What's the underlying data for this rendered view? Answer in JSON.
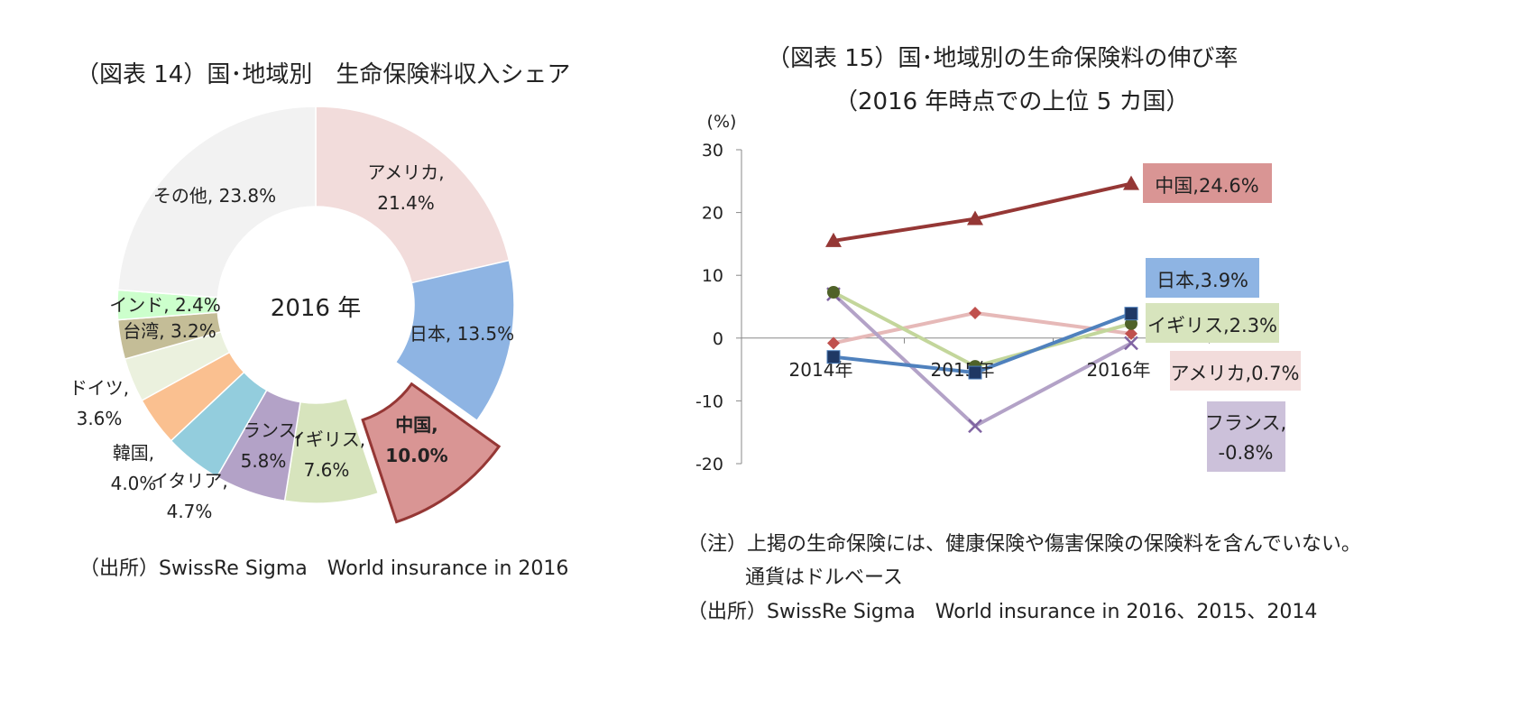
{
  "left": {
    "title": "（図表 14）国･地域別　生命保険料収入シェア",
    "source": "（出所）SwissRe Sigma　World insurance in 2016"
  },
  "right": {
    "title_line1": "（図表 15）国･地域別の生命保険料の伸び率",
    "title_line2": "（2016 年時点での上位 5 カ国）",
    "note_line1": "（注）上掲の生命保険には、健康保険や傷害保険の保険料を含んでいない。",
    "note_line2": "通貨はドルベース",
    "source": "（出所）SwissRe Sigma　World insurance in 2016、2015、2014"
  },
  "chart_data": [
    {
      "type": "pie",
      "variant": "donut",
      "center_label": "2016 年",
      "labels": [
        [
          "アメリカ,",
          "21.4%"
        ],
        [
          "日本, 13.5%"
        ],
        [
          "中国,",
          "10.0%"
        ],
        [
          "イギリス,",
          "7.6%"
        ],
        [
          "フランス,",
          "5.8%"
        ],
        [
          "イタリア,",
          "4.7%"
        ],
        [
          "韓国,",
          "4.0%"
        ],
        [
          "ドイツ,",
          "3.6%"
        ],
        [
          "台湾, 3.2%"
        ],
        [
          "インド, 2.4%"
        ],
        [
          "その他, 23.8%"
        ]
      ],
      "values": [
        21.4,
        13.5,
        10.0,
        7.6,
        5.8,
        4.7,
        4.0,
        3.6,
        3.2,
        2.4,
        23.8
      ],
      "colors": [
        "#f2dcdb",
        "#8eb4e3",
        "#d99594",
        "#d7e4bd",
        "#b3a2c7",
        "#93cddd",
        "#fac090",
        "#ebf1de",
        "#c4bd97",
        "#ccffcc",
        "#f2f2f2"
      ],
      "exploded": "中国",
      "start": "12 o'clock, clockwise"
    },
    {
      "type": "line",
      "ylabel": "(%)",
      "x": [
        "2014年",
        "2015年",
        "2016年"
      ],
      "ylim": [
        -20,
        30
      ],
      "yticks": [
        "30",
        "20",
        "10",
        "0",
        "-10",
        "-20"
      ],
      "series": [
        {
          "label": "中国,24.6%",
          "values": [
            15.5,
            19.0,
            24.6
          ],
          "color": "#953735",
          "label_bg": "#d99594",
          "marker": "triangle"
        },
        {
          "label": "日本,3.9%",
          "values": [
            -3.0,
            -5.5,
            3.9
          ],
          "color": "#4f81bd",
          "marker_color": "#1f3864",
          "label_bg": "#8eb4e3",
          "marker": "square"
        },
        {
          "label": "イギリス,2.3%",
          "values": [
            7.3,
            -4.5,
            2.3
          ],
          "color": "#c3d69b",
          "marker_color": "#4f6228",
          "label_bg": "#d7e4bd",
          "marker": "circle"
        },
        {
          "label": "アメリカ,0.7%",
          "values": [
            -0.8,
            4.0,
            0.7
          ],
          "color": "#e6b9b8",
          "marker_color": "#c0504d",
          "label_bg": "#f2dcdb",
          "marker": "diamond"
        },
        {
          "label_lines": [
            "フランス,",
            "-0.8%"
          ],
          "values": [
            7.0,
            -14.0,
            -0.8
          ],
          "color": "#b3a2c7",
          "marker_color": "#8064a2",
          "label_bg": "#ccc1da",
          "marker": "x"
        }
      ]
    }
  ]
}
